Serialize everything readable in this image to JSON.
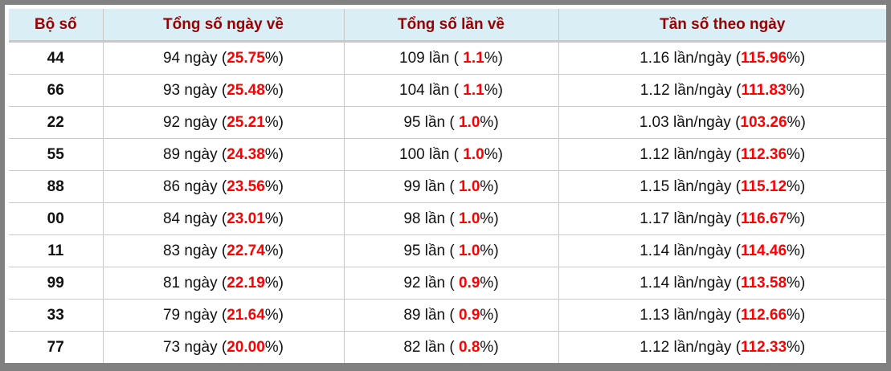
{
  "headers": [
    "Bộ số",
    "Tổng số ngày về",
    "Tổng số lần về",
    "Tần số theo ngày"
  ],
  "accent_color": "#ff0000",
  "header_text_color": "#990000",
  "rows": [
    {
      "so": "44",
      "ngay": "94",
      "ngay_pct": "25.75",
      "lan": "109",
      "lan_pct": "1.1",
      "tan": "1.16",
      "tan_pct": "115.96"
    },
    {
      "so": "66",
      "ngay": "93",
      "ngay_pct": "25.48",
      "lan": "104",
      "lan_pct": "1.1",
      "tan": "1.12",
      "tan_pct": "111.83"
    },
    {
      "so": "22",
      "ngay": "92",
      "ngay_pct": "25.21",
      "lan": "95",
      "lan_pct": "1.0",
      "tan": "1.03",
      "tan_pct": "103.26"
    },
    {
      "so": "55",
      "ngay": "89",
      "ngay_pct": "24.38",
      "lan": "100",
      "lan_pct": "1.0",
      "tan": "1.12",
      "tan_pct": "112.36"
    },
    {
      "so": "88",
      "ngay": "86",
      "ngay_pct": "23.56",
      "lan": "99",
      "lan_pct": "1.0",
      "tan": "1.15",
      "tan_pct": "115.12"
    },
    {
      "so": "00",
      "ngay": "84",
      "ngay_pct": "23.01",
      "lan": "98",
      "lan_pct": "1.0",
      "tan": "1.17",
      "tan_pct": "116.67"
    },
    {
      "so": "11",
      "ngay": "83",
      "ngay_pct": "22.74",
      "lan": "95",
      "lan_pct": "1.0",
      "tan": "1.14",
      "tan_pct": "114.46"
    },
    {
      "so": "99",
      "ngay": "81",
      "ngay_pct": "22.19",
      "lan": "92",
      "lan_pct": "0.9",
      "tan": "1.14",
      "tan_pct": "113.58"
    },
    {
      "so": "33",
      "ngay": "79",
      "ngay_pct": "21.64",
      "lan": "89",
      "lan_pct": "0.9",
      "tan": "1.13",
      "tan_pct": "112.66"
    },
    {
      "so": "77",
      "ngay": "73",
      "ngay_pct": "20.00",
      "lan": "82",
      "lan_pct": "0.8",
      "tan": "1.12",
      "tan_pct": "112.33"
    }
  ],
  "units": {
    "ngay": " ngày (",
    "lan": " lần ( ",
    "tan": " lần/ngày (",
    "close": "%)"
  }
}
